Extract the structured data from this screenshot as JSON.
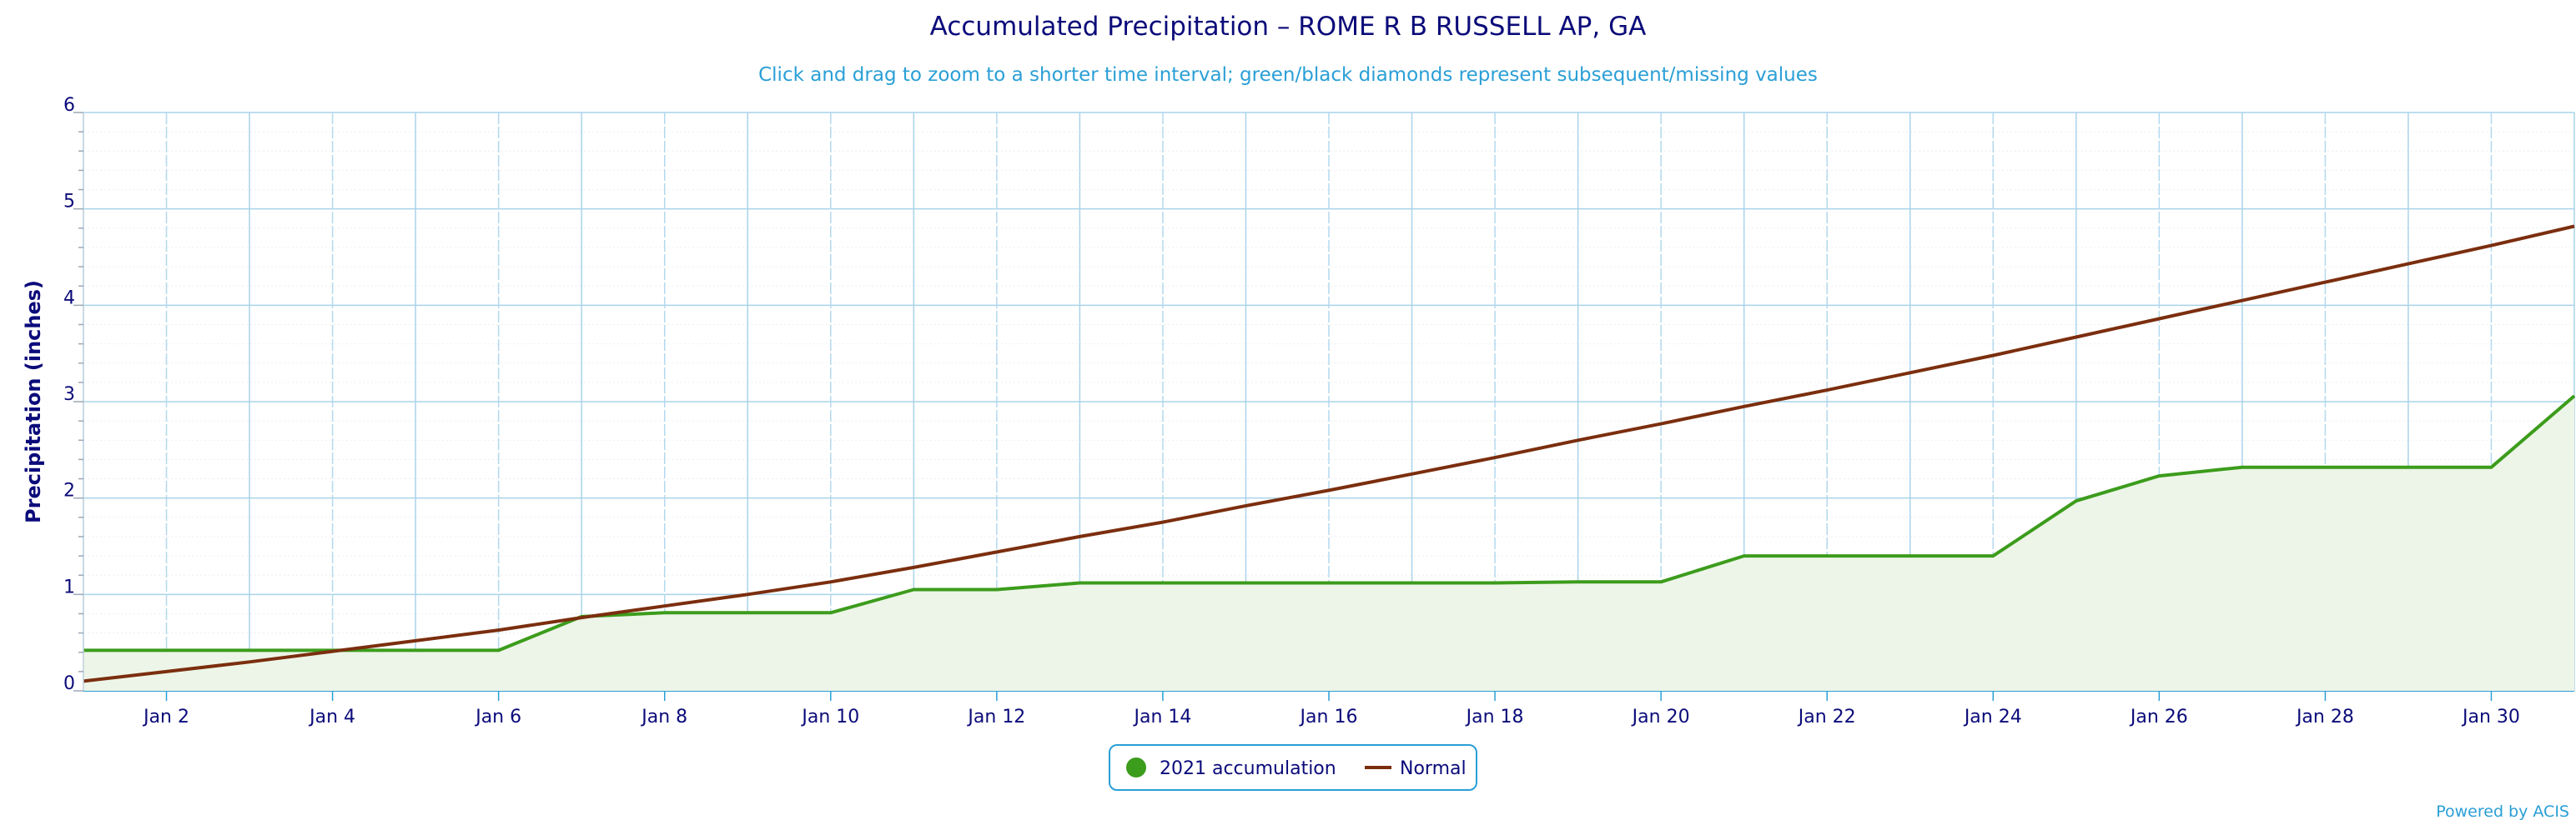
{
  "chart_data": {
    "type": "line",
    "title": "Accumulated Precipitation – ROME R B RUSSELL AP, GA",
    "subtitle": "Click and drag to zoom to a shorter time interval; green/black diamonds represent subsequent/missing values",
    "ylabel": "Precipitation (inches)",
    "xlabel": "",
    "ylim": [
      0,
      6
    ],
    "yticks": [
      0,
      1,
      2,
      3,
      4,
      5,
      6
    ],
    "x_ticks": [
      {
        "day": 2,
        "label": "Jan 2"
      },
      {
        "day": 4,
        "label": "Jan 4"
      },
      {
        "day": 6,
        "label": "Jan 6"
      },
      {
        "day": 8,
        "label": "Jan 8"
      },
      {
        "day": 10,
        "label": "Jan 10"
      },
      {
        "day": 12,
        "label": "Jan 12"
      },
      {
        "day": 14,
        "label": "Jan 14"
      },
      {
        "day": 16,
        "label": "Jan 16"
      },
      {
        "day": 18,
        "label": "Jan 18"
      },
      {
        "day": 20,
        "label": "Jan 20"
      },
      {
        "day": 22,
        "label": "Jan 22"
      },
      {
        "day": 24,
        "label": "Jan 24"
      },
      {
        "day": 26,
        "label": "Jan 26"
      },
      {
        "day": 28,
        "label": "Jan 28"
      },
      {
        "day": 30,
        "label": "Jan 30"
      }
    ],
    "grid": true,
    "legend_position": "bottom-center",
    "x": [
      1,
      2,
      3,
      4,
      5,
      6,
      7,
      8,
      9,
      10,
      11,
      12,
      13,
      14,
      15,
      16,
      17,
      18,
      19,
      20,
      21,
      22,
      23,
      24,
      25,
      26,
      27,
      28,
      29,
      30,
      31
    ],
    "series": [
      {
        "name": "2021 accumulation",
        "color": "#3c9c1c",
        "fill": "#edf5e8",
        "area": true,
        "values": [
          0.42,
          0.42,
          0.42,
          0.42,
          0.42,
          0.42,
          0.77,
          0.81,
          0.81,
          0.81,
          1.05,
          1.05,
          1.12,
          1.12,
          1.12,
          1.12,
          1.12,
          1.12,
          1.13,
          1.13,
          1.4,
          1.4,
          1.4,
          1.4,
          1.97,
          2.23,
          2.32,
          2.32,
          2.32,
          2.32,
          3.06
        ]
      },
      {
        "name": "Normal",
        "color": "#7b2e0e",
        "area": false,
        "values": [
          0.1,
          0.2,
          0.3,
          0.41,
          0.52,
          0.63,
          0.76,
          0.88,
          1.0,
          1.13,
          1.28,
          1.44,
          1.6,
          1.75,
          1.92,
          2.08,
          2.25,
          2.42,
          2.6,
          2.77,
          2.95,
          3.12,
          3.3,
          3.48,
          3.67,
          3.86,
          4.05,
          4.24,
          4.43,
          4.62,
          4.82
        ]
      }
    ],
    "credit": "Powered by ACIS"
  }
}
